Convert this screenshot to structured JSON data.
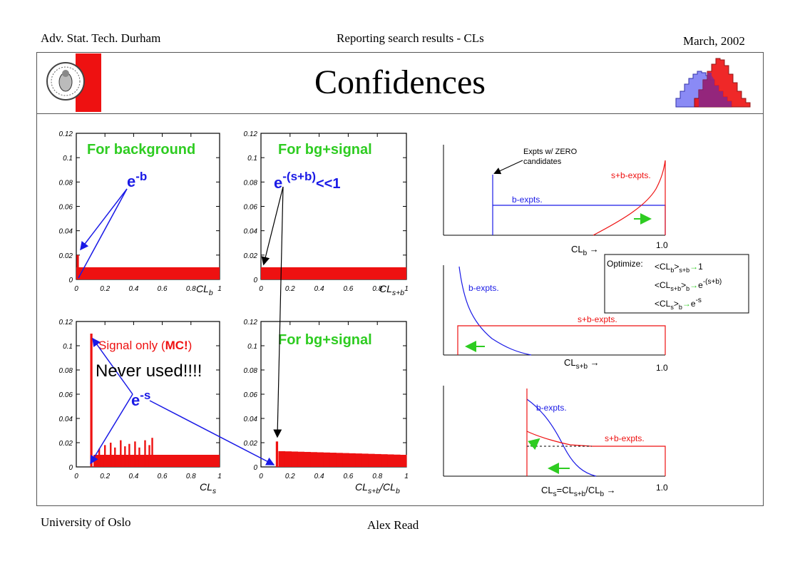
{
  "header": {
    "left": "Adv. Stat. Tech. Durham",
    "center": "Reporting search results - CLs",
    "right": "March, 2002"
  },
  "footer": {
    "left": "University of Oslo",
    "center": "Alex Read"
  },
  "slide": {
    "title": "Confidences"
  },
  "colors": {
    "hist_fill": "#ee1111",
    "label_green": "#2ecc21",
    "arrow_blue": "#1a1ae6",
    "frame": "#555555"
  },
  "icons": {
    "logo": "university-seal-icon",
    "corner": "overlapping-histograms-icon"
  },
  "annotations": {
    "never_used": "Never used!!!!",
    "e_minus_b": "e-b",
    "e_minus_s": "e-s",
    "e_minus_sb_base": "e",
    "e_minus_sb_exp": "-(s+b)",
    "e_minus_sb_suffix": "<<1",
    "signal_only_prefix": "Signal only (",
    "signal_only_mc": "MC!",
    "signal_only_suffix": ")"
  },
  "chart_data": [
    {
      "type": "bar",
      "title": "For background",
      "xlabel": "CL_b",
      "xlim": [
        0,
        1
      ],
      "ylim": [
        0,
        0.12
      ],
      "xticks": [
        "0",
        "0.2",
        "0.4",
        "0.6",
        "0.8",
        "1"
      ],
      "yticks": [
        "0",
        "0.02",
        "0.04",
        "0.06",
        "0.08",
        "0.1",
        "0.12"
      ],
      "bins": [
        {
          "x": 0.01,
          "y": 0.02
        }
      ],
      "flat_level": 0.01
    },
    {
      "type": "bar",
      "title": "For bg+signal",
      "xlabel": "CL_s+b",
      "xlim": [
        0,
        1
      ],
      "ylim": [
        0,
        0.12
      ],
      "xticks": [
        "0",
        "0.2",
        "0.4",
        "0.6",
        "0.8",
        "1"
      ],
      "yticks": [
        "0",
        "0.02",
        "0.04",
        "0.06",
        "0.08",
        "0.1",
        "0.12"
      ],
      "bins": [],
      "flat_level": 0.01
    },
    {
      "type": "bar",
      "title": "Signal only (MC!)",
      "xlabel": "CL_s",
      "xlim": [
        0,
        1
      ],
      "ylim": [
        0,
        0.12
      ],
      "xticks": [
        "0",
        "0.2",
        "0.4",
        "0.6",
        "0.8",
        "1"
      ],
      "yticks": [
        "0",
        "0.02",
        "0.04",
        "0.06",
        "0.08",
        "0.1",
        "0.12"
      ],
      "bins": [
        {
          "x": 0.105,
          "y": 0.11
        },
        {
          "x": 0.16,
          "y": 0.015
        },
        {
          "x": 0.2,
          "y": 0.018
        },
        {
          "x": 0.24,
          "y": 0.02
        },
        {
          "x": 0.27,
          "y": 0.016
        },
        {
          "x": 0.31,
          "y": 0.022
        },
        {
          "x": 0.34,
          "y": 0.017
        },
        {
          "x": 0.37,
          "y": 0.019
        },
        {
          "x": 0.41,
          "y": 0.021
        },
        {
          "x": 0.44,
          "y": 0.016
        },
        {
          "x": 0.48,
          "y": 0.022
        },
        {
          "x": 0.51,
          "y": 0.018
        },
        {
          "x": 0.53,
          "y": 0.024
        }
      ],
      "flat_start": 0.12,
      "flat_level": 0.01
    },
    {
      "type": "bar",
      "title": "For bg+signal",
      "xlabel": "CL_s+b/CL_b",
      "xlim": [
        0,
        1
      ],
      "ylim": [
        0,
        0.12
      ],
      "xticks": [
        "0",
        "0.2",
        "0.4",
        "0.6",
        "0.8",
        "1"
      ],
      "yticks": [
        "0",
        "0.02",
        "0.04",
        "0.06",
        "0.08",
        "0.1",
        "0.12"
      ],
      "bins": [
        {
          "x": 0.11,
          "y": 0.021
        }
      ],
      "flat_start": 0.12,
      "flat_level": 0.013,
      "flat_end_level": 0.01
    }
  ],
  "sketches": {
    "top": {
      "xlabel": "CL_b →",
      "x_end": "1.0",
      "callout": [
        "Expts w/ ZERO",
        "candidates"
      ],
      "b_label": "b-expts.",
      "sb_label": "s+b-expts."
    },
    "middle": {
      "xlabel": "CL_s+b →",
      "x_end": "1.0",
      "b_label": "b-expts.",
      "sb_label": "s+b-expts."
    },
    "bottom": {
      "xlabel": "CL_s=CL_s+b/CL_b →",
      "x_end": "1.0",
      "b_label": "b-expts.",
      "sb_label": "s+b-expts."
    },
    "optimize": {
      "heading": "Optimize:",
      "line1": "<CL_b>_s+b → 1",
      "line2": "<CL_s+b>_b → e^-(s+b)",
      "line3": "<CL_s>_b → e^-s"
    }
  }
}
